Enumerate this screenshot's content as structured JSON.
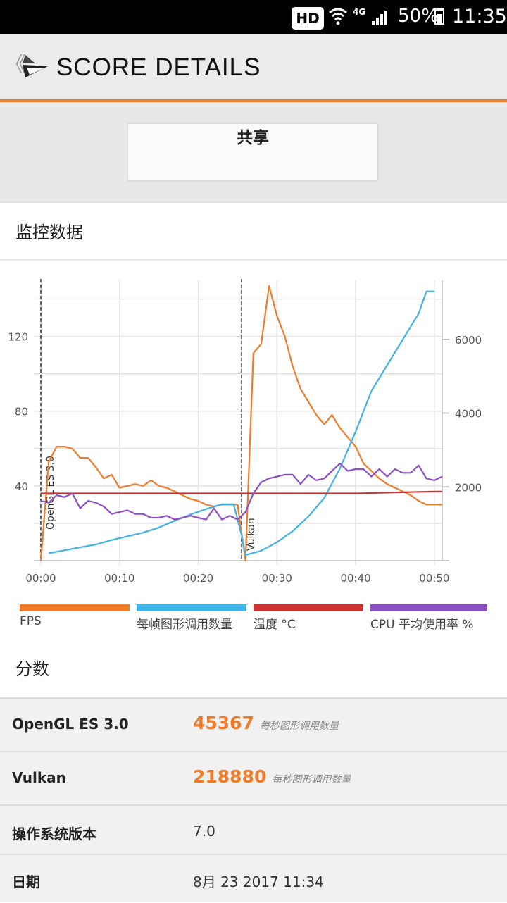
{
  "status_bar": {
    "hd": "HD",
    "network": "4G",
    "battery": "50%",
    "time": "11:35"
  },
  "header": {
    "back_glyph": "《",
    "title": "SCORE DETAILS"
  },
  "share_button": {
    "label": "共享"
  },
  "monitor": {
    "title": "监控数据"
  },
  "chart_data": {
    "type": "line",
    "x_ticks": [
      "00:00",
      "00:10",
      "00:20",
      "00:30",
      "00:40",
      "00:50"
    ],
    "y_left_ticks": [
      40,
      80,
      120
    ],
    "y_right_ticks": [
      2000,
      4000,
      6000
    ],
    "y_left_range": [
      0,
      150
    ],
    "y_right_range": [
      0,
      7600
    ],
    "x_range_seconds": [
      0,
      51
    ],
    "markers": [
      {
        "label": "OpenGL ES 3.0",
        "x": 0
      },
      {
        "label": "Vulkan",
        "x": 25.5
      }
    ],
    "series": [
      {
        "name": "FPS",
        "axis": "left",
        "color": "#f07c2b",
        "points": [
          [
            0,
            0
          ],
          [
            1,
            53
          ],
          [
            2,
            61
          ],
          [
            3,
            61
          ],
          [
            4,
            60
          ],
          [
            5,
            55
          ],
          [
            6,
            55
          ],
          [
            7,
            50
          ],
          [
            8,
            44
          ],
          [
            9,
            46
          ],
          [
            10,
            39
          ],
          [
            11,
            40
          ],
          [
            12,
            41
          ],
          [
            13,
            40
          ],
          [
            14,
            43
          ],
          [
            15,
            40
          ],
          [
            16,
            39
          ],
          [
            17,
            37
          ],
          [
            18,
            35
          ],
          [
            19,
            33
          ],
          [
            20,
            32
          ],
          [
            21,
            30
          ],
          [
            22,
            29
          ],
          [
            23,
            30
          ],
          [
            24,
            30
          ],
          [
            25,
            30
          ],
          [
            26,
            0
          ],
          [
            27,
            111
          ],
          [
            28,
            116
          ],
          [
            29,
            147
          ],
          [
            30,
            131
          ],
          [
            31,
            120
          ],
          [
            32,
            104
          ],
          [
            33,
            92
          ],
          [
            34,
            85
          ],
          [
            35,
            78
          ],
          [
            36,
            73
          ],
          [
            37,
            78
          ],
          [
            38,
            71
          ],
          [
            39,
            66
          ],
          [
            40,
            61
          ],
          [
            41,
            52
          ],
          [
            42,
            48
          ],
          [
            43,
            44
          ],
          [
            44,
            41
          ],
          [
            45,
            39
          ],
          [
            46,
            37
          ],
          [
            47,
            35
          ],
          [
            48,
            32
          ],
          [
            49,
            30
          ],
          [
            50,
            30
          ],
          [
            51,
            30
          ]
        ]
      },
      {
        "name": "每帧图形调用数量",
        "axis": "right",
        "color": "#3fb2e6",
        "points": [
          [
            1,
            200
          ],
          [
            3,
            280
          ],
          [
            5,
            360
          ],
          [
            7,
            440
          ],
          [
            9,
            560
          ],
          [
            11,
            660
          ],
          [
            13,
            760
          ],
          [
            15,
            900
          ],
          [
            17,
            1080
          ],
          [
            19,
            1250
          ],
          [
            21,
            1400
          ],
          [
            23,
            1530
          ],
          [
            24.5,
            1530
          ],
          [
            25.5,
            700
          ],
          [
            26,
            150
          ],
          [
            28,
            270
          ],
          [
            30,
            500
          ],
          [
            32,
            800
          ],
          [
            34,
            1200
          ],
          [
            36,
            1700
          ],
          [
            38,
            2500
          ],
          [
            40,
            3500
          ],
          [
            42,
            4600
          ],
          [
            44,
            5300
          ],
          [
            46,
            6000
          ],
          [
            48,
            6700
          ],
          [
            49,
            7300
          ],
          [
            50,
            7300
          ]
        ]
      },
      {
        "name": "温度 °C",
        "axis": "left",
        "color": "#cc3333",
        "points": [
          [
            0,
            36
          ],
          [
            10,
            36
          ],
          [
            20,
            36
          ],
          [
            30,
            36
          ],
          [
            40,
            36
          ],
          [
            50,
            37
          ],
          [
            51,
            37
          ]
        ]
      },
      {
        "name": "CPU 平均使用率 %",
        "axis": "left",
        "color": "#8e4fc4",
        "points": [
          [
            0,
            32
          ],
          [
            1,
            31
          ],
          [
            2,
            35
          ],
          [
            3,
            34
          ],
          [
            4,
            36
          ],
          [
            5,
            28
          ],
          [
            6,
            32
          ],
          [
            7,
            31
          ],
          [
            8,
            29
          ],
          [
            9,
            25
          ],
          [
            10,
            26
          ],
          [
            11,
            27
          ],
          [
            12,
            25
          ],
          [
            13,
            25
          ],
          [
            14,
            23
          ],
          [
            15,
            23
          ],
          [
            16,
            24
          ],
          [
            17,
            22
          ],
          [
            18,
            23
          ],
          [
            19,
            24
          ],
          [
            20,
            23
          ],
          [
            21,
            22
          ],
          [
            22,
            28
          ],
          [
            23,
            22
          ],
          [
            24,
            24
          ],
          [
            25,
            22
          ],
          [
            26,
            26
          ],
          [
            27,
            36
          ],
          [
            28,
            42
          ],
          [
            29,
            44
          ],
          [
            30,
            45
          ],
          [
            31,
            46
          ],
          [
            32,
            46
          ],
          [
            33,
            41
          ],
          [
            34,
            46
          ],
          [
            35,
            43
          ],
          [
            36,
            44
          ],
          [
            37,
            48
          ],
          [
            38,
            52
          ],
          [
            39,
            48
          ],
          [
            40,
            49
          ],
          [
            41,
            49
          ],
          [
            42,
            45
          ],
          [
            43,
            49
          ],
          [
            44,
            45
          ],
          [
            45,
            49
          ],
          [
            46,
            47
          ],
          [
            47,
            47
          ],
          [
            48,
            51
          ],
          [
            49,
            44
          ],
          [
            50,
            43
          ],
          [
            51,
            45
          ]
        ]
      }
    ]
  },
  "legend": [
    {
      "label": "FPS",
      "color": "#f07c2b"
    },
    {
      "label": "每帧图形调用数量",
      "color": "#3fb2e6"
    },
    {
      "label": "温度 °C",
      "color": "#cc3333"
    },
    {
      "label": "CPU 平均使用率 %",
      "color": "#8e4fc4"
    }
  ],
  "scores": {
    "title": "分数",
    "opengl": {
      "label": "OpenGL ES 3.0",
      "value": "45367",
      "unit": "每秒图形调用数量"
    },
    "vulkan": {
      "label": "Vulkan",
      "value": "218880",
      "unit": "每秒图形调用数量"
    },
    "os": {
      "label": "操作系统版本",
      "value": "7.0"
    },
    "date": {
      "label": "日期",
      "value": "8月 23 2017 11:34"
    }
  }
}
